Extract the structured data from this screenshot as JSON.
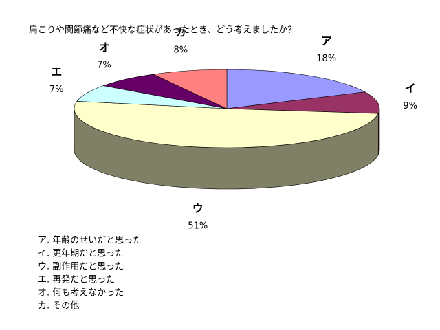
{
  "chart_data": {
    "type": "pie3d",
    "title": "肩こりや関節痛など不快な症状があったとき、どう考えましたか？",
    "categories": [
      "ア",
      "イ",
      "ウ",
      "エ",
      "オ",
      "カ"
    ],
    "values": [
      18,
      9,
      51,
      7,
      7,
      8
    ],
    "value_labels": [
      "18%",
      "9%",
      "51%",
      "7%",
      "7%",
      "8%"
    ],
    "colors": [
      "#9999ff",
      "#993366",
      "#ffffcc",
      "#ccffff",
      "#660066",
      "#ff8080"
    ],
    "legend": [
      "ア. 年齢のせいだと思った",
      "イ. 更年期だと思った",
      "ウ. 副作用だと思った",
      "エ. 再発だと思った",
      "オ. 何も考えなかった",
      "カ. その他"
    ]
  }
}
